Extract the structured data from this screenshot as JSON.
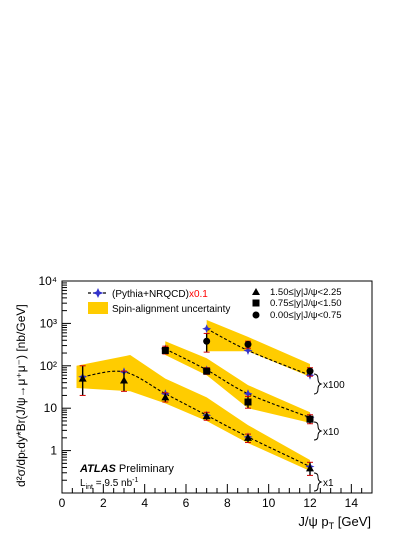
{
  "chart_data": {
    "type": "scatter",
    "xlabel": "J/ψ p",
    "xlabel_sub": "T",
    "xlabel_unit": " [GeV]",
    "ylabel": "d²σ/dpₜdy*Br(J/ψ→μ⁺μ⁻) [nb/GeV]",
    "xlim": [
      0,
      15
    ],
    "ylim": [
      0.1,
      10000
    ],
    "yscale": "log",
    "x_ticks": [
      "0",
      "2",
      "4",
      "6",
      "8",
      "10",
      "12",
      "14"
    ],
    "y_ticks": [
      "1",
      "10",
      "10²",
      "10³",
      "10⁴"
    ],
    "legend": {
      "model": "(Pythia+NRQCD)",
      "model_factor": "x0.1",
      "band": "Spin-alignment uncertainty",
      "rap_bins": [
        "1.50≤|y|J/ψ<2.25",
        "0.75≤|y|J/ψ<1.50",
        "0.00≤|y|J/ψ<0.75"
      ]
    },
    "scale_labels": [
      "x100",
      "x10",
      "x1"
    ],
    "atlas_label": "ATLAS",
    "atlas_status": "Preliminary",
    "lumi": "L",
    "lumi_sub": "int",
    "lumi_value": " = 9.5 nb",
    "lumi_exp": "-1",
    "series": [
      {
        "name": "1.50≤|y|J/ψ<2.25",
        "marker": "triangle",
        "scale": "x1",
        "x": [
          1.0,
          3.0,
          5.0,
          7.0,
          9.0,
          12.0
        ],
        "y": [
          50,
          45,
          18,
          6.5,
          2.0,
          0.38
        ],
        "yerr_lo": [
          30,
          20,
          4,
          1.3,
          0.45,
          0.12
        ],
        "yerr_hi": [
          50,
          30,
          5,
          1.5,
          0.45,
          0.15
        ],
        "band_x": [
          0.7,
          3.3,
          5.0,
          7.0,
          9.0,
          12.0
        ],
        "band_lo": [
          30,
          25,
          13,
          5.0,
          1.5,
          0.33
        ],
        "band_hi": [
          100,
          180,
          50,
          18,
          4.0,
          0.6
        ],
        "model_x": [
          1.0,
          3.0,
          5.0,
          7.0,
          9.0,
          12.0
        ],
        "model_y": [
          55,
          72,
          22,
          6.8,
          2.1,
          0.42
        ]
      },
      {
        "name": "0.75≤|y|J/ψ<1.50",
        "marker": "square",
        "scale": "x10",
        "x": [
          5.0,
          7.0,
          9.0,
          12.0
        ],
        "y": [
          230,
          75,
          14,
          5.5
        ],
        "yerr_lo": [
          40,
          12,
          4,
          1.2
        ],
        "yerr_hi": [
          60,
          15,
          5,
          1.5
        ],
        "band_x": [
          5.0,
          7.0,
          9.0,
          12.0
        ],
        "band_lo": [
          180,
          60,
          10,
          4.5
        ],
        "band_hi": [
          380,
          150,
          35,
          8.0
        ],
        "model_x": [
          5.0,
          7.0,
          9.0,
          12.0
        ],
        "model_y": [
          250,
          80,
          22,
          6.0
        ]
      },
      {
        "name": "0.00≤|y|J/ψ<0.75",
        "marker": "circle",
        "scale": "x100",
        "x": [
          7.0,
          9.0,
          12.0
        ],
        "y": [
          380,
          320,
          75
        ],
        "yerr_lo": [
          170,
          60,
          18
        ],
        "yerr_hi": [
          200,
          60,
          15
        ],
        "band_x": [
          7.0,
          9.0,
          12.0
        ],
        "band_lo": [
          220,
          220,
          55
        ],
        "band_hi": [
          1200,
          480,
          110
        ],
        "model_x": [
          7.0,
          9.0,
          12.0
        ],
        "model_y": [
          750,
          230,
          60
        ]
      }
    ]
  },
  "colors": {
    "band": "#ffcc00",
    "model_line": "#000000",
    "model_marker": "#3333cc",
    "model_factor": "#ff0000",
    "error_bar": "#d00000",
    "marker": "#000000"
  }
}
